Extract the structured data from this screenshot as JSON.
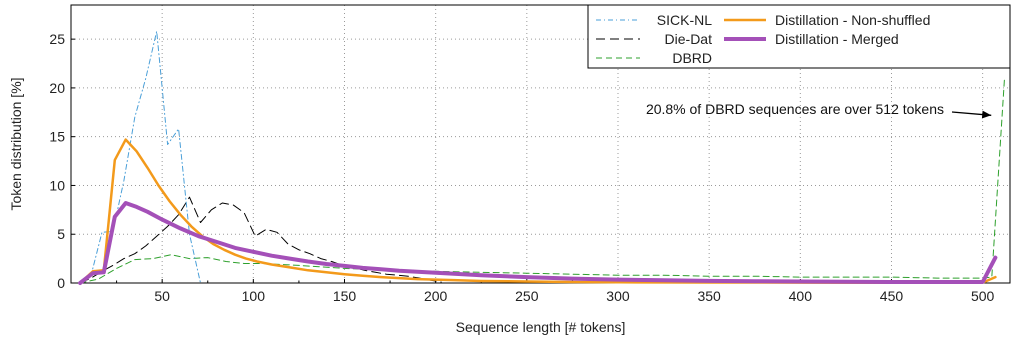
{
  "chart_data": {
    "type": "line",
    "xlabel": "Sequence length [# tokens]",
    "ylabel": "Token distribution [%]",
    "xlim": [
      0,
      515
    ],
    "ylim": [
      0,
      28.5
    ],
    "xticks": [
      50,
      100,
      150,
      200,
      250,
      300,
      350,
      400,
      450,
      500
    ],
    "yticks": [
      0,
      5,
      10,
      15,
      20,
      25
    ],
    "grid": true,
    "legend_position": "top-right",
    "annotation": {
      "text": "20.8% of DBRD sequences are over 512 tokens",
      "arrow_to": [
        508,
        17.5
      ]
    },
    "series": [
      {
        "name": "SICK-NL",
        "color": "#4a9fd8",
        "style": "dashdot",
        "width": 1,
        "x": [
          5,
          11,
          17,
          23,
          29,
          35,
          41,
          47,
          53,
          59,
          65,
          71
        ],
        "y": [
          0,
          0.8,
          5.2,
          5.3,
          10.5,
          17.0,
          21.0,
          25.8,
          14.2,
          15.8,
          5.0,
          0
        ]
      },
      {
        "name": "Die-Dat",
        "color": "#000000",
        "style": "longdash",
        "width": 1,
        "x": [
          5,
          11,
          17,
          23,
          29,
          35,
          41,
          47,
          53,
          59,
          65,
          71,
          77,
          83,
          89,
          95,
          101,
          107,
          113,
          119,
          125,
          131,
          137,
          143,
          149,
          155,
          161,
          167,
          173,
          179,
          185,
          191,
          197,
          203
        ],
        "y": [
          0,
          0.5,
          1.2,
          1.8,
          2.5,
          3.0,
          3.8,
          4.8,
          5.8,
          7.0,
          8.8,
          6.2,
          7.5,
          8.2,
          8.0,
          7.2,
          4.8,
          5.5,
          5.2,
          4.0,
          3.4,
          3.0,
          2.5,
          2.2,
          1.8,
          1.6,
          1.3,
          1.1,
          0.9,
          0.8,
          0.7,
          0.5,
          0.3,
          0.1
        ]
      },
      {
        "name": "DBRD",
        "color": "#2ea02c",
        "style": "dashed",
        "width": 1,
        "x": [
          5,
          15,
          25,
          35,
          45,
          55,
          65,
          75,
          85,
          95,
          105,
          125,
          150,
          175,
          200,
          225,
          250,
          275,
          300,
          325,
          350,
          375,
          400,
          425,
          450,
          475,
          500,
          505,
          512
        ],
        "y": [
          0,
          0.4,
          1.5,
          2.4,
          2.5,
          2.9,
          2.5,
          2.6,
          2.2,
          2.0,
          2.0,
          1.8,
          1.5,
          1.3,
          1.2,
          1.1,
          1.0,
          0.9,
          0.8,
          0.8,
          0.7,
          0.7,
          0.6,
          0.6,
          0.6,
          0.5,
          0.5,
          0.6,
          21.0
        ]
      },
      {
        "name": "Distillation - Non-shuffled",
        "color": "#f39a1b",
        "style": "solid",
        "width": 2.5,
        "x": [
          5,
          12,
          18,
          24,
          30,
          36,
          42,
          48,
          54,
          60,
          66,
          72,
          78,
          84,
          90,
          96,
          102,
          110,
          120,
          130,
          140,
          150,
          160,
          170,
          180,
          190,
          200,
          210,
          225,
          250,
          275,
          300,
          350,
          400,
          450,
          500,
          507
        ],
        "y": [
          0,
          1.2,
          1.3,
          12.6,
          14.7,
          13.5,
          11.8,
          10.0,
          8.4,
          7.0,
          5.8,
          4.8,
          4.0,
          3.4,
          2.9,
          2.5,
          2.2,
          1.9,
          1.6,
          1.3,
          1.1,
          0.9,
          0.75,
          0.6,
          0.5,
          0.4,
          0.35,
          0.3,
          0.2,
          0.15,
          0.1,
          0.07,
          0.05,
          0.04,
          0.03,
          0.04,
          0.6
        ]
      },
      {
        "name": "Distillation - Merged",
        "color": "#a450b8",
        "style": "solid",
        "width": 4,
        "x": [
          5,
          12,
          18,
          24,
          30,
          36,
          42,
          50,
          60,
          70,
          80,
          90,
          100,
          110,
          120,
          130,
          140,
          150,
          160,
          170,
          180,
          190,
          200,
          225,
          250,
          275,
          300,
          325,
          350,
          375,
          400,
          425,
          450,
          475,
          500,
          507
        ],
        "y": [
          0,
          1.0,
          1.1,
          6.8,
          8.2,
          7.8,
          7.3,
          6.5,
          5.6,
          4.8,
          4.2,
          3.6,
          3.2,
          2.8,
          2.5,
          2.2,
          1.95,
          1.75,
          1.55,
          1.4,
          1.25,
          1.15,
          1.05,
          0.8,
          0.6,
          0.45,
          0.35,
          0.28,
          0.22,
          0.18,
          0.15,
          0.12,
          0.1,
          0.1,
          0.1,
          2.6
        ]
      }
    ]
  }
}
